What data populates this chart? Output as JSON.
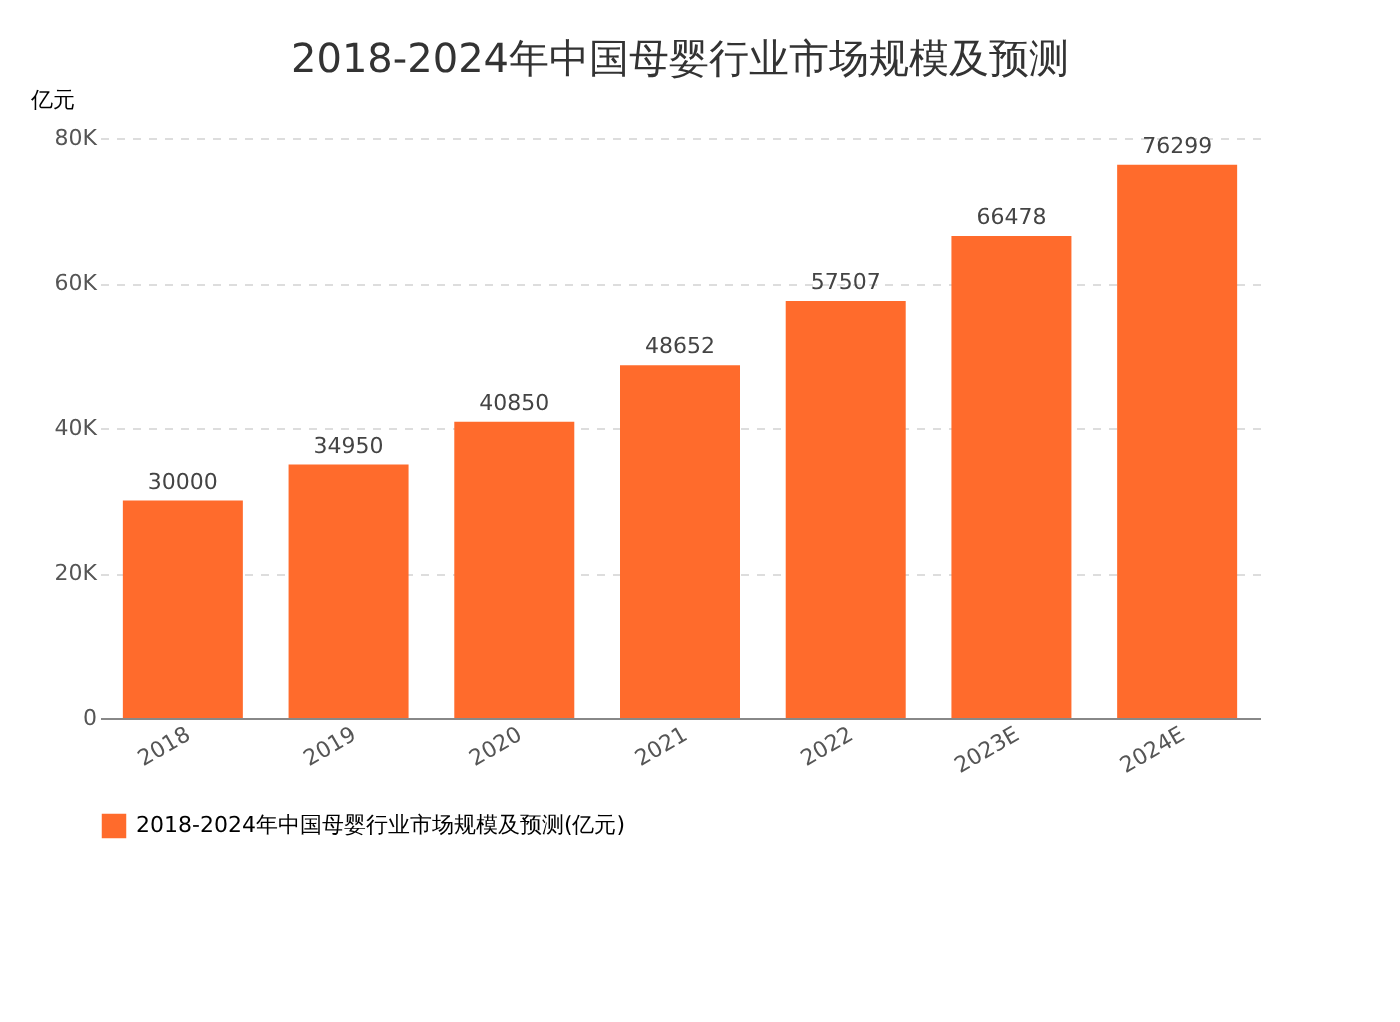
{
  "chart_data": {
    "type": "bar",
    "title": "2018-2024年中国母婴行业市场规模及预测",
    "ylabel": "亿元",
    "categories": [
      "2018",
      "2019",
      "2020",
      "2021",
      "2022",
      "2023E",
      "2024E"
    ],
    "series": [
      {
        "name": "2018-2024年中国母婴行业市场规模及预测(亿元)",
        "color": "#ff6b2c",
        "values": [
          30000,
          34950,
          40850,
          48652,
          57507,
          66478,
          76299
        ]
      }
    ],
    "ylim": [
      0,
      80000
    ],
    "yticks": [
      0,
      {
        "value": 20000,
        "label": "20K"
      },
      {
        "value": 40000,
        "label": "40K"
      },
      {
        "value": 60000,
        "label": "60K"
      },
      {
        "value": 80000,
        "label": "80K"
      }
    ],
    "grid": "y",
    "legend": "bottom",
    "data_labels": true
  }
}
